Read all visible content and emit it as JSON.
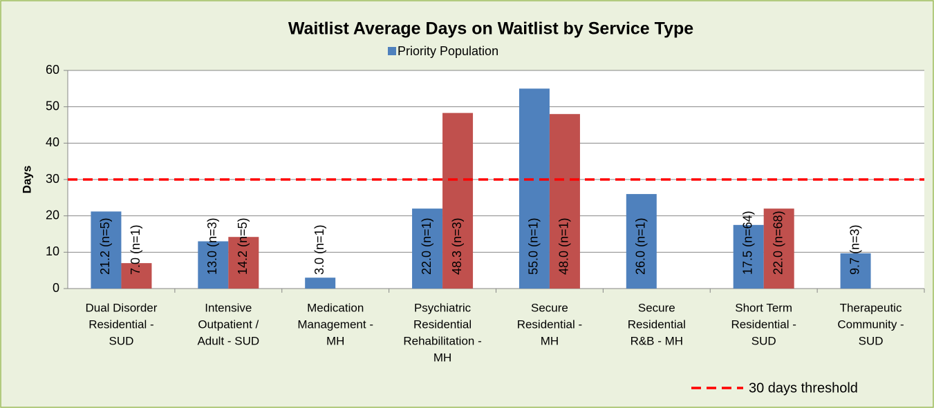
{
  "chart_data": {
    "type": "bar",
    "title": "Waitlist Average Days on Waitlist by Service Type",
    "y_label": "Days",
    "categories": [
      [
        "Dual Disorder",
        "Residential -",
        "SUD"
      ],
      [
        "Intensive",
        "Outpatient /",
        "Adult - SUD"
      ],
      [
        "Medication",
        "Management -",
        "MH"
      ],
      [
        "Psychiatric",
        "Residential",
        "Rehabilitation -",
        "MH"
      ],
      [
        "Secure",
        "Residential -",
        "MH"
      ],
      [
        "Secure",
        "Residential",
        "R&B - MH"
      ],
      [
        "Short Term",
        "Residential -",
        "SUD"
      ],
      [
        "Therapeutic",
        "Community -",
        "SUD"
      ]
    ],
    "series": [
      {
        "name": "Priority Population",
        "color": "#4f81bd",
        "values": [
          21.2,
          13.0,
          3.0,
          22.0,
          55.0,
          26.0,
          17.5,
          9.7
        ],
        "value_labels": [
          "21.2 (n=5)",
          "13.0 (n=3)",
          "3.0 (n=1)",
          "22.0 (n=1)",
          "55.0 (n=1)",
          "26.0 (n=1)",
          "17.5 (n=64)",
          "9.7 (n=3)"
        ]
      },
      {
        "color": "#c0504d",
        "values": [
          7.0,
          14.2,
          null,
          48.3,
          48.0,
          null,
          22.0,
          null
        ],
        "value_labels": [
          "7.0 (n=1)",
          "14.2 (n=5)",
          null,
          "48.3 (n=3)",
          "48.0 (n=1)",
          null,
          "22.0 (n=68)",
          null
        ]
      }
    ],
    "threshold": {
      "value": 30,
      "label": "30 days threshold",
      "color": "#ff0000"
    },
    "ylim": [
      0,
      60
    ],
    "yticks": [
      0,
      10,
      20,
      30,
      40,
      50,
      60
    ],
    "grid": true
  }
}
